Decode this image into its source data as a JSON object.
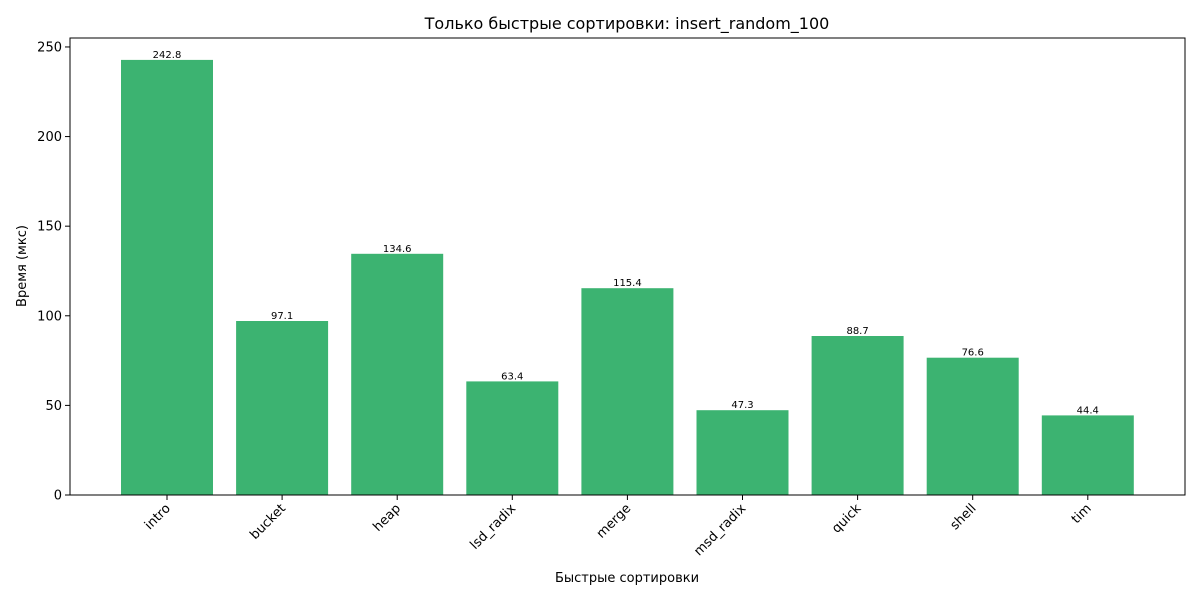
{
  "chart_data": {
    "type": "bar",
    "title": "Только быстрые сортировки: insert_random_100",
    "xlabel": "Быстрые сортировки",
    "ylabel": "Время (мкс)",
    "categories": [
      "intro",
      "bucket",
      "heap",
      "lsd_radix",
      "merge",
      "msd_radix",
      "quick",
      "shell",
      "tim"
    ],
    "values": [
      242.8,
      97.1,
      134.6,
      63.4,
      115.4,
      47.3,
      88.7,
      76.6,
      44.4
    ],
    "data_labels": [
      "242.8",
      "97.1",
      "134.6",
      "63.4",
      "115.4",
      "47.3",
      "88.7",
      "76.6",
      "44.4"
    ],
    "yticks": [
      0,
      50,
      100,
      150,
      200,
      250
    ],
    "ytick_labels": [
      "0",
      "50",
      "100",
      "150",
      "200",
      "250"
    ],
    "ylim": [
      0,
      255
    ],
    "grid": false,
    "bar_color": "#3cb371",
    "xtick_rotation": 45
  }
}
